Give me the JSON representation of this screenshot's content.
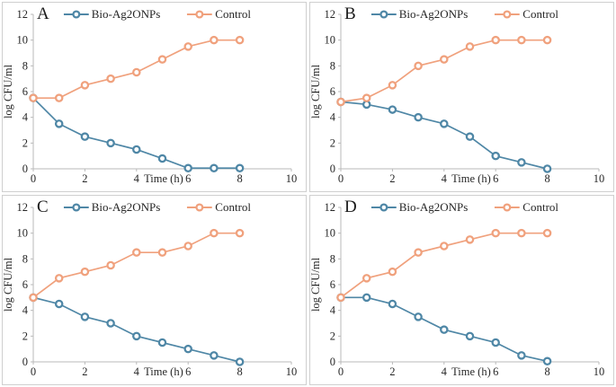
{
  "figure": {
    "colors": {
      "bio": "#4f87a6",
      "control": "#f0a17d",
      "axis_line": "#b9b9b9",
      "tick_text": "#262626",
      "panel_border": "#cfcfcf"
    },
    "legend_labels": [
      "Bio-Ag2ONPs",
      "Control"
    ]
  },
  "chart_data": [
    {
      "type": "line",
      "panel": "A",
      "xlabel": "Time (h)",
      "ylabel": "log CFU/ml",
      "xlim": [
        0,
        10
      ],
      "ylim": [
        0,
        12
      ],
      "xticks": [
        0,
        2,
        4,
        6,
        8,
        10
      ],
      "yticks": [
        0,
        2,
        4,
        6,
        8,
        10,
        12
      ],
      "grid": false,
      "legend_position": "top",
      "x": [
        0,
        1,
        2,
        3,
        4,
        5,
        6,
        7,
        8
      ],
      "series": [
        {
          "name": "Bio-Ag2ONPs",
          "color": "#4f87a6",
          "values": [
            5.5,
            3.5,
            2.5,
            2.0,
            1.5,
            0.8,
            0.05,
            0.05,
            0.05
          ]
        },
        {
          "name": "Control",
          "color": "#f0a17d",
          "values": [
            5.5,
            5.5,
            6.5,
            7.0,
            7.5,
            8.5,
            9.5,
            10.0,
            10.0
          ]
        }
      ]
    },
    {
      "type": "line",
      "panel": "B",
      "xlabel": "Time (h)",
      "ylabel": "log CFU/ml",
      "xlim": [
        0,
        10
      ],
      "ylim": [
        0,
        12
      ],
      "xticks": [
        0,
        2,
        4,
        6,
        8,
        10
      ],
      "yticks": [
        0,
        2,
        4,
        6,
        8,
        10,
        12
      ],
      "grid": false,
      "legend_position": "top",
      "x": [
        0,
        1,
        2,
        3,
        4,
        5,
        6,
        7,
        8
      ],
      "series": [
        {
          "name": "Bio-Ag2ONPs",
          "color": "#4f87a6",
          "values": [
            5.2,
            5.0,
            4.6,
            4.0,
            3.5,
            2.5,
            1.0,
            0.5,
            0.0
          ]
        },
        {
          "name": "Control",
          "color": "#f0a17d",
          "values": [
            5.2,
            5.5,
            6.5,
            8.0,
            8.5,
            9.5,
            10.0,
            10.0,
            10.0
          ]
        }
      ]
    },
    {
      "type": "line",
      "panel": "C",
      "xlabel": "Time (h)",
      "ylabel": "log CFU/ml",
      "xlim": [
        0,
        10
      ],
      "ylim": [
        0,
        12
      ],
      "xticks": [
        0,
        2,
        4,
        6,
        8,
        10
      ],
      "yticks": [
        0,
        2,
        4,
        6,
        8,
        10,
        12
      ],
      "grid": false,
      "legend_position": "top",
      "x": [
        0,
        1,
        2,
        3,
        4,
        5,
        6,
        7,
        8
      ],
      "series": [
        {
          "name": "Bio-Ag2ONPs",
          "color": "#4f87a6",
          "values": [
            5.0,
            4.5,
            3.5,
            3.0,
            2.0,
            1.5,
            1.0,
            0.5,
            0.0
          ]
        },
        {
          "name": "Control",
          "color": "#f0a17d",
          "values": [
            5.0,
            6.5,
            7.0,
            7.5,
            8.5,
            8.5,
            9.0,
            10.0,
            10.0
          ]
        }
      ]
    },
    {
      "type": "line",
      "panel": "D",
      "xlabel": "Time (h)",
      "ylabel": "log CFU/ml",
      "xlim": [
        0,
        10
      ],
      "ylim": [
        0,
        12
      ],
      "xticks": [
        0,
        2,
        4,
        6,
        8,
        10
      ],
      "yticks": [
        0,
        2,
        4,
        6,
        8,
        10,
        12
      ],
      "grid": false,
      "legend_position": "top",
      "x": [
        0,
        1,
        2,
        3,
        4,
        5,
        6,
        7,
        8
      ],
      "series": [
        {
          "name": "Bio-Ag2ONPs",
          "color": "#4f87a6",
          "values": [
            5.0,
            5.0,
            4.5,
            3.5,
            2.5,
            2.0,
            1.5,
            0.5,
            0.05
          ]
        },
        {
          "name": "Control",
          "color": "#f0a17d",
          "values": [
            5.0,
            6.5,
            7.0,
            8.5,
            9.0,
            9.5,
            10.0,
            10.0,
            10.0
          ]
        }
      ]
    }
  ]
}
